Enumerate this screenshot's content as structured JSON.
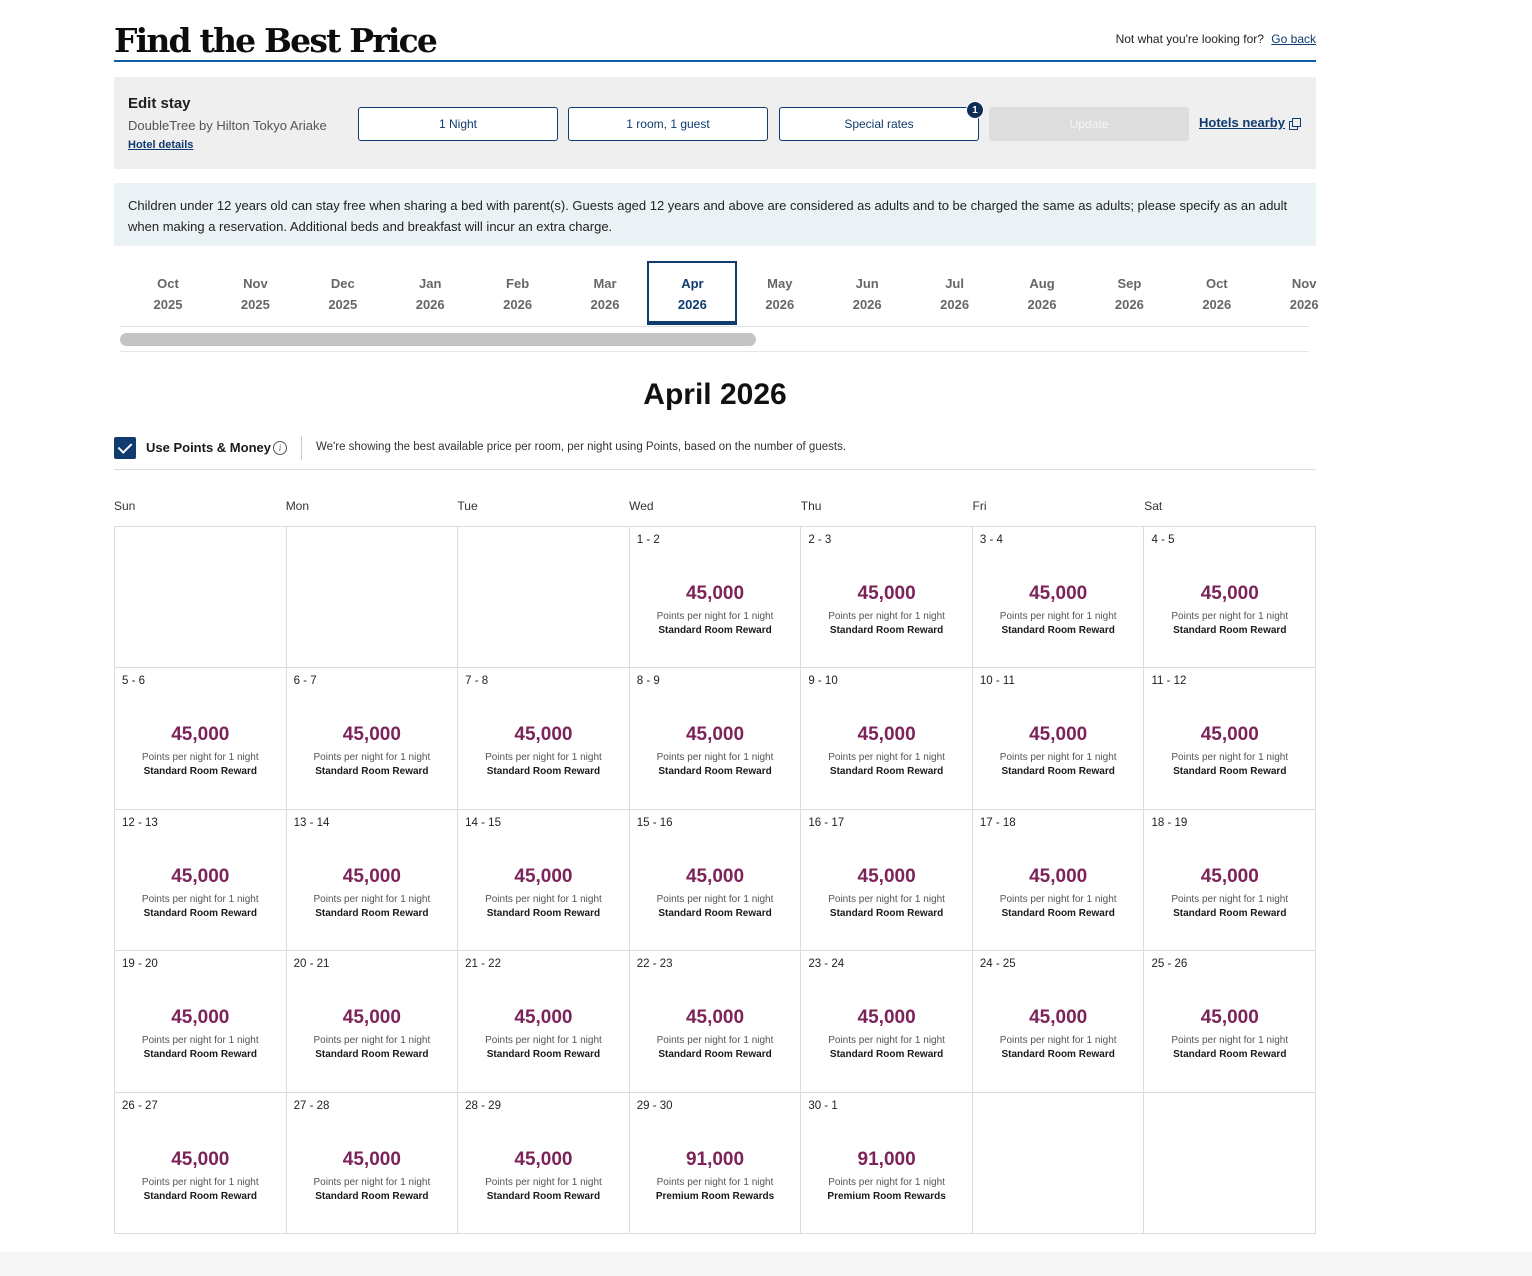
{
  "header": {
    "title": "Find the Best Price",
    "not_what": "Not what you're looking for?",
    "go_back": "Go back"
  },
  "edit": {
    "title": "Edit stay",
    "hotel": "DoubleTree by Hilton Tokyo Ariake",
    "hotel_details": "Hotel details",
    "nights": "1 Night",
    "rooms": "1 room, 1 guest",
    "special_rates": "Special rates",
    "special_rates_badge": "1",
    "update": "Update",
    "hotels_nearby": "Hotels nearby"
  },
  "notice": "Children under 12 years old can stay free when sharing a bed with parent(s). Guests aged 12 years and above are considered as adults and to be charged the same as adults; please specify as an adult when making a reservation. Additional beds and breakfast will incur an extra charge.",
  "months": [
    {
      "m": "Oct",
      "y": "2025"
    },
    {
      "m": "Nov",
      "y": "2025"
    },
    {
      "m": "Dec",
      "y": "2025"
    },
    {
      "m": "Jan",
      "y": "2026"
    },
    {
      "m": "Feb",
      "y": "2026"
    },
    {
      "m": "Mar",
      "y": "2026"
    },
    {
      "m": "Apr",
      "y": "2026",
      "active": true
    },
    {
      "m": "May",
      "y": "2026"
    },
    {
      "m": "Jun",
      "y": "2026"
    },
    {
      "m": "Jul",
      "y": "2026"
    },
    {
      "m": "Aug",
      "y": "2026"
    },
    {
      "m": "Sep",
      "y": "2026"
    },
    {
      "m": "Oct",
      "y": "2026"
    },
    {
      "m": "Nov",
      "y": "2026"
    }
  ],
  "calendar": {
    "title": "April 2026",
    "use_points_label": "Use Points & Money",
    "points_desc": "We're showing the best available price per room, per night using Points, based on the number of guests.",
    "days_of_week": [
      "Sun",
      "Mon",
      "Tue",
      "Wed",
      "Thu",
      "Fri",
      "Sat"
    ],
    "weeks": [
      [
        null,
        null,
        null,
        {
          "d": "1 - 2",
          "p": "45,000",
          "s": "Points per night for 1 night",
          "t": "Standard Room Reward"
        },
        {
          "d": "2 - 3",
          "p": "45,000",
          "s": "Points per night for 1 night",
          "t": "Standard Room Reward"
        },
        {
          "d": "3 - 4",
          "p": "45,000",
          "s": "Points per night for 1 night",
          "t": "Standard Room Reward"
        },
        {
          "d": "4 - 5",
          "p": "45,000",
          "s": "Points per night for 1 night",
          "t": "Standard Room Reward"
        }
      ],
      [
        {
          "d": "5 - 6",
          "p": "45,000",
          "s": "Points per night for 1 night",
          "t": "Standard Room Reward"
        },
        {
          "d": "6 - 7",
          "p": "45,000",
          "s": "Points per night for 1 night",
          "t": "Standard Room Reward"
        },
        {
          "d": "7 - 8",
          "p": "45,000",
          "s": "Points per night for 1 night",
          "t": "Standard Room Reward"
        },
        {
          "d": "8 - 9",
          "p": "45,000",
          "s": "Points per night for 1 night",
          "t": "Standard Room Reward"
        },
        {
          "d": "9 - 10",
          "p": "45,000",
          "s": "Points per night for 1 night",
          "t": "Standard Room Reward"
        },
        {
          "d": "10 - 11",
          "p": "45,000",
          "s": "Points per night for 1 night",
          "t": "Standard Room Reward"
        },
        {
          "d": "11 - 12",
          "p": "45,000",
          "s": "Points per night for 1 night",
          "t": "Standard Room Reward"
        }
      ],
      [
        {
          "d": "12 - 13",
          "p": "45,000",
          "s": "Points per night for 1 night",
          "t": "Standard Room Reward"
        },
        {
          "d": "13 - 14",
          "p": "45,000",
          "s": "Points per night for 1 night",
          "t": "Standard Room Reward"
        },
        {
          "d": "14 - 15",
          "p": "45,000",
          "s": "Points per night for 1 night",
          "t": "Standard Room Reward"
        },
        {
          "d": "15 - 16",
          "p": "45,000",
          "s": "Points per night for 1 night",
          "t": "Standard Room Reward"
        },
        {
          "d": "16 - 17",
          "p": "45,000",
          "s": "Points per night for 1 night",
          "t": "Standard Room Reward"
        },
        {
          "d": "17 - 18",
          "p": "45,000",
          "s": "Points per night for 1 night",
          "t": "Standard Room Reward"
        },
        {
          "d": "18 - 19",
          "p": "45,000",
          "s": "Points per night for 1 night",
          "t": "Standard Room Reward"
        }
      ],
      [
        {
          "d": "19 - 20",
          "p": "45,000",
          "s": "Points per night for 1 night",
          "t": "Standard Room Reward"
        },
        {
          "d": "20 - 21",
          "p": "45,000",
          "s": "Points per night for 1 night",
          "t": "Standard Room Reward"
        },
        {
          "d": "21 - 22",
          "p": "45,000",
          "s": "Points per night for 1 night",
          "t": "Standard Room Reward"
        },
        {
          "d": "22 - 23",
          "p": "45,000",
          "s": "Points per night for 1 night",
          "t": "Standard Room Reward"
        },
        {
          "d": "23 - 24",
          "p": "45,000",
          "s": "Points per night for 1 night",
          "t": "Standard Room Reward"
        },
        {
          "d": "24 - 25",
          "p": "45,000",
          "s": "Points per night for 1 night",
          "t": "Standard Room Reward"
        },
        {
          "d": "25 - 26",
          "p": "45,000",
          "s": "Points per night for 1 night",
          "t": "Standard Room Reward"
        }
      ],
      [
        {
          "d": "26 - 27",
          "p": "45,000",
          "s": "Points per night for 1 night",
          "t": "Standard Room Reward"
        },
        {
          "d": "27 - 28",
          "p": "45,000",
          "s": "Points per night for 1 night",
          "t": "Standard Room Reward"
        },
        {
          "d": "28 - 29",
          "p": "45,000",
          "s": "Points per night for 1 night",
          "t": "Standard Room Reward"
        },
        {
          "d": "29 - 30",
          "p": "91,000",
          "s": "Points per night for 1 night",
          "t": "Premium Room Rewards"
        },
        {
          "d": "30 - 1",
          "p": "91,000",
          "s": "Points per night for 1 night",
          "t": "Premium Room Rewards"
        },
        null,
        null
      ]
    ]
  },
  "colors": {
    "accent": "#0f3b6e",
    "price": "#7c2459",
    "notice_bg": "#eaf2f6",
    "panel_bg": "#efefef"
  }
}
